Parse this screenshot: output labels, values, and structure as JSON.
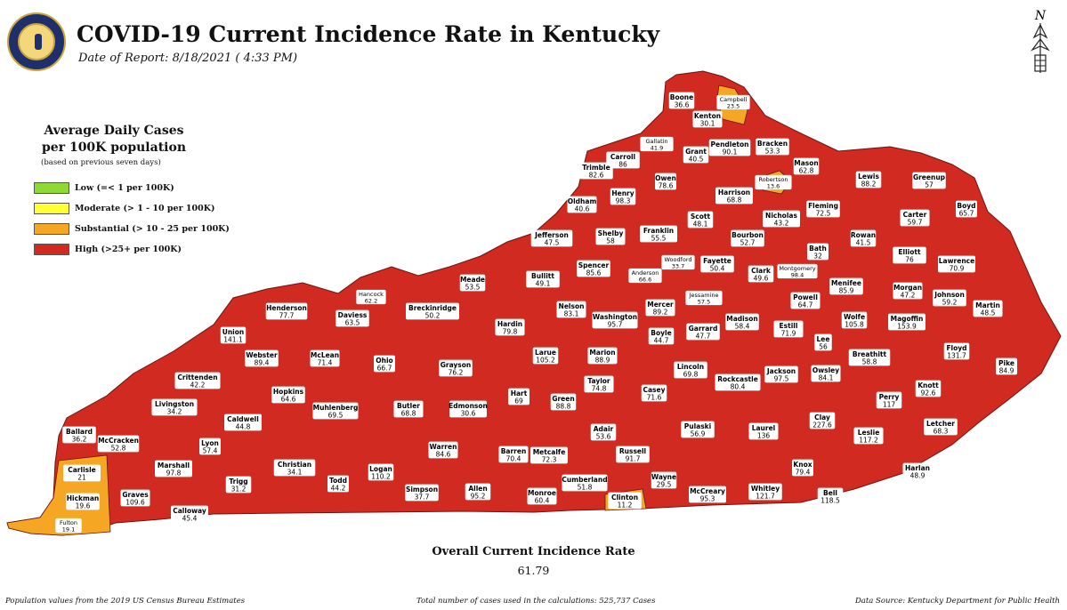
{
  "header": {
    "title": "COVID-19 Current Incidence Rate in Kentucky",
    "date": "Date of Report: 8/18/2021 ( 4:33 PM)"
  },
  "north_label": "N",
  "legend": {
    "title_line1": "Average Daily Cases",
    "title_line2": "per 100K population",
    "note": "(based on previous seven days)",
    "items": [
      {
        "label": "Low (=< 1 per 100K)",
        "color": "#8fd936"
      },
      {
        "label": "Moderate (> 1 - 10 per 100K)",
        "color": "#ffff33"
      },
      {
        "label": "Substantial (> 10 - 25 per 100K)",
        "color": "#f5a623"
      },
      {
        "label": "High (>25+ per 100K)",
        "color": "#d12a21"
      }
    ]
  },
  "overall": {
    "label": "Overall Current Incidence Rate",
    "value": "61.79"
  },
  "footer": {
    "left": "Population values from the 2019 US Census Bureau Estimates",
    "center": "Total number of cases used in the calculations: 525,737 Cases",
    "right": "Data Source: Kentucky Department for Public Health"
  },
  "counties": [
    {
      "name": "Boone",
      "value": "36.6"
    },
    {
      "name": "Campbell",
      "value": "23.5"
    },
    {
      "name": "Kenton",
      "value": "30.1"
    },
    {
      "name": "Gallatin",
      "value": "41.9"
    },
    {
      "name": "Pendleton",
      "value": "90.1"
    },
    {
      "name": "Bracken",
      "value": "53.3"
    },
    {
      "name": "Carroll",
      "value": "86"
    },
    {
      "name": "Grant",
      "value": "40.5"
    },
    {
      "name": "Mason",
      "value": "62.8"
    },
    {
      "name": "Trimble",
      "value": "82.6"
    },
    {
      "name": "Owen",
      "value": "78.6"
    },
    {
      "name": "Robertson",
      "value": "13.6"
    },
    {
      "name": "Lewis",
      "value": "88.2"
    },
    {
      "name": "Greenup",
      "value": "57"
    },
    {
      "name": "Henry",
      "value": "98.3"
    },
    {
      "name": "Harrison",
      "value": "68.8"
    },
    {
      "name": "Oldham",
      "value": "40.6"
    },
    {
      "name": "Fleming",
      "value": "72.5"
    },
    {
      "name": "Boyd",
      "value": "65.7"
    },
    {
      "name": "Carter",
      "value": "59.7"
    },
    {
      "name": "Scott",
      "value": "48.1"
    },
    {
      "name": "Nicholas",
      "value": "43.2"
    },
    {
      "name": "Shelby",
      "value": "58"
    },
    {
      "name": "Franklin",
      "value": "55.5"
    },
    {
      "name": "Jefferson",
      "value": "47.5"
    },
    {
      "name": "Bourbon",
      "value": "52.7"
    },
    {
      "name": "Rowan",
      "value": "41.5"
    },
    {
      "name": "Bath",
      "value": "32"
    },
    {
      "name": "Elliott",
      "value": "76"
    },
    {
      "name": "Woodford",
      "value": "33.7"
    },
    {
      "name": "Fayette",
      "value": "50.4"
    },
    {
      "name": "Lawrence",
      "value": "70.9"
    },
    {
      "name": "Spencer",
      "value": "85.6"
    },
    {
      "name": "Anderson",
      "value": "66.6"
    },
    {
      "name": "Clark",
      "value": "49.6"
    },
    {
      "name": "Montgomery",
      "value": "98.4"
    },
    {
      "name": "Bullitt",
      "value": "49.1"
    },
    {
      "name": "Meade",
      "value": "53.5"
    },
    {
      "name": "Menifee",
      "value": "85.9"
    },
    {
      "name": "Jessamine",
      "value": "57.5"
    },
    {
      "name": "Hancock",
      "value": "62.2"
    },
    {
      "name": "Morgan",
      "value": "47.2"
    },
    {
      "name": "Johnson",
      "value": "59.2"
    },
    {
      "name": "Powell",
      "value": "64.7"
    },
    {
      "name": "Nelson",
      "value": "83.1"
    },
    {
      "name": "Mercer",
      "value": "89.2"
    },
    {
      "name": "Martin",
      "value": "48.5"
    },
    {
      "name": "Henderson",
      "value": "77.7"
    },
    {
      "name": "Breckinridge",
      "value": "50.2"
    },
    {
      "name": "Daviess",
      "value": "63.5"
    },
    {
      "name": "Washington",
      "value": "95.7"
    },
    {
      "name": "Madison",
      "value": "58.4"
    },
    {
      "name": "Wolfe",
      "value": "105.8"
    },
    {
      "name": "Magoffin",
      "value": "153.9"
    },
    {
      "name": "Hardin",
      "value": "79.8"
    },
    {
      "name": "Boyle",
      "value": "44.7"
    },
    {
      "name": "Garrard",
      "value": "47.7"
    },
    {
      "name": "Estill",
      "value": "71.9"
    },
    {
      "name": "Union",
      "value": "141.1"
    },
    {
      "name": "Lee",
      "value": "56"
    },
    {
      "name": "Floyd",
      "value": "131.7"
    },
    {
      "name": "McLean",
      "value": "71.4"
    },
    {
      "name": "Webster",
      "value": "89.4"
    },
    {
      "name": "Larue",
      "value": "105.2"
    },
    {
      "name": "Marion",
      "value": "88.9"
    },
    {
      "name": "Breathitt",
      "value": "58.8"
    },
    {
      "name": "Ohio",
      "value": "66.7"
    },
    {
      "name": "Lincoln",
      "value": "69.8"
    },
    {
      "name": "Grayson",
      "value": "76.2"
    },
    {
      "name": "Crittenden",
      "value": "42.2"
    },
    {
      "name": "Pike",
      "value": "84.9"
    },
    {
      "name": "Rockcastle",
      "value": "80.4"
    },
    {
      "name": "Jackson",
      "value": "97.5"
    },
    {
      "name": "Owsley",
      "value": "84.1"
    },
    {
      "name": "Taylor",
      "value": "74.8"
    },
    {
      "name": "Hopkins",
      "value": "64.6"
    },
    {
      "name": "Knott",
      "value": "92.6"
    },
    {
      "name": "Hart",
      "value": "69"
    },
    {
      "name": "Casey",
      "value": "71.6"
    },
    {
      "name": "Green",
      "value": "88.8"
    },
    {
      "name": "Livingston",
      "value": "34.2"
    },
    {
      "name": "Perry",
      "value": "117"
    },
    {
      "name": "Muhlenberg",
      "value": "69.5"
    },
    {
      "name": "Butler",
      "value": "68.8"
    },
    {
      "name": "Edmonson",
      "value": "30.6"
    },
    {
      "name": "Caldwell",
      "value": "44.8"
    },
    {
      "name": "Clay",
      "value": "227.6"
    },
    {
      "name": "Letcher",
      "value": "68.3"
    },
    {
      "name": "Adair",
      "value": "53.6"
    },
    {
      "name": "Ballard",
      "value": "36.2"
    },
    {
      "name": "Pulaski",
      "value": "56.9"
    },
    {
      "name": "Laurel",
      "value": "136"
    },
    {
      "name": "Leslie",
      "value": "117.2"
    },
    {
      "name": "McCracken",
      "value": "52.8"
    },
    {
      "name": "Lyon",
      "value": "57.4"
    },
    {
      "name": "Russell",
      "value": "91.7"
    },
    {
      "name": "Barren",
      "value": "70.4"
    },
    {
      "name": "Metcalfe",
      "value": "72.3"
    },
    {
      "name": "Warren",
      "value": "84.6"
    },
    {
      "name": "Carlisle",
      "value": "21"
    },
    {
      "name": "Marshall",
      "value": "97.8"
    },
    {
      "name": "Christian",
      "value": "34.1"
    },
    {
      "name": "Knox",
      "value": "79.4"
    },
    {
      "name": "Harlan",
      "value": "48.9"
    },
    {
      "name": "Trigg",
      "value": "31.2"
    },
    {
      "name": "Todd",
      "value": "44.2"
    },
    {
      "name": "Logan",
      "value": "110.2"
    },
    {
      "name": "Wayne",
      "value": "29.5"
    },
    {
      "name": "Cumberland",
      "value": "51.8"
    },
    {
      "name": "Hickman",
      "value": "19.6"
    },
    {
      "name": "Graves",
      "value": "109.6"
    },
    {
      "name": "Simpson",
      "value": "37.7"
    },
    {
      "name": "Allen",
      "value": "95.2"
    },
    {
      "name": "McCreary",
      "value": "95.3"
    },
    {
      "name": "Whitley",
      "value": "121.7"
    },
    {
      "name": "Bell",
      "value": "118.5"
    },
    {
      "name": "Monroe",
      "value": "60.4"
    },
    {
      "name": "Clinton",
      "value": "11.2"
    },
    {
      "name": "Calloway",
      "value": "45.4"
    },
    {
      "name": "Fulton",
      "value": "19.1"
    }
  ]
}
